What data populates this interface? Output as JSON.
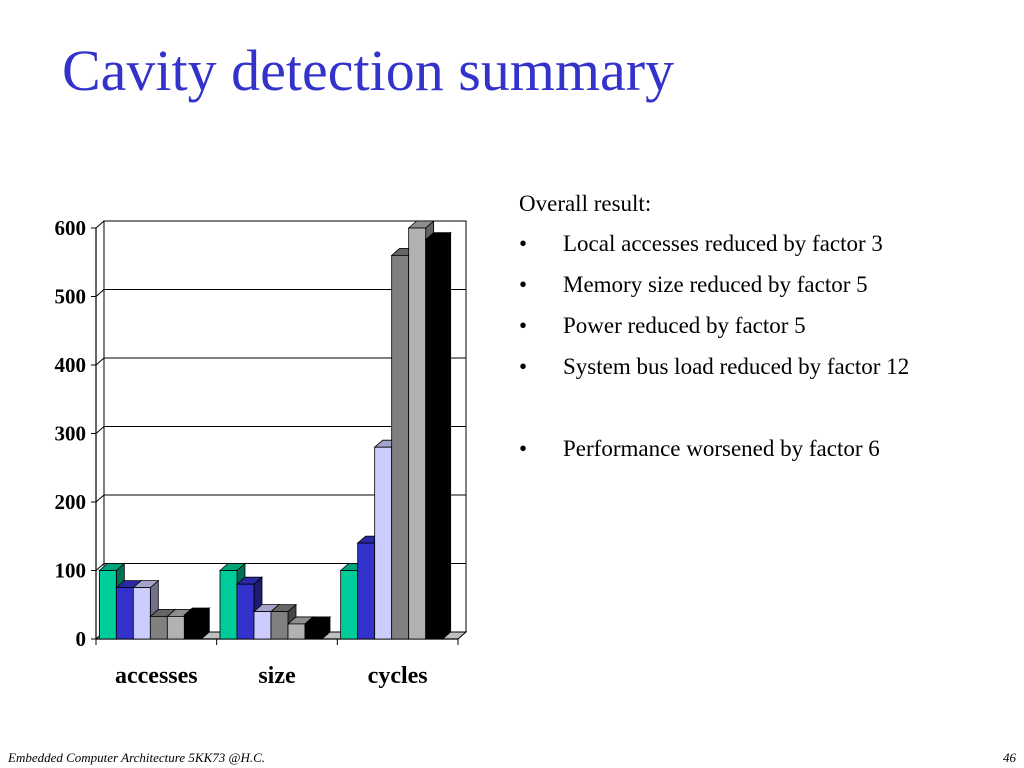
{
  "slide": {
    "title": "Cavity detection summary",
    "summary_heading": "Overall result:",
    "bullets": [
      "Local accesses reduced by factor 3",
      "Memory size reduced by  factor 5",
      "Power reduced by factor 5",
      "System bus load reduced by factor 12",
      "Performance worsened by factor 6"
    ],
    "bullet_symbol": "•",
    "footer": "Embedded Computer Architecture 5KK73 @H.C.",
    "page_number": "46"
  },
  "chart_data": {
    "type": "bar",
    "title": "",
    "xlabel": "",
    "ylabel": "",
    "categories": [
      "accesses",
      "size",
      "cycles"
    ],
    "ylim": [
      0,
      600
    ],
    "yticks": [
      "0",
      "100",
      "200",
      "300",
      "400",
      "500",
      "600"
    ],
    "grid": true,
    "legend": "none",
    "series": [
      {
        "color": "#00cc99",
        "values": [
          100,
          100,
          100
        ]
      },
      {
        "color": "#3333cc",
        "values": [
          75,
          80,
          140
        ]
      },
      {
        "color": "#ccccff",
        "values": [
          75,
          40,
          280
        ]
      },
      {
        "color": "#808080",
        "values": [
          33,
          40,
          560
        ]
      },
      {
        "color": "#b2b2b2",
        "values": [
          33,
          22,
          600
        ]
      },
      {
        "color": "#000000",
        "values": [
          35,
          22,
          583
        ]
      }
    ]
  }
}
